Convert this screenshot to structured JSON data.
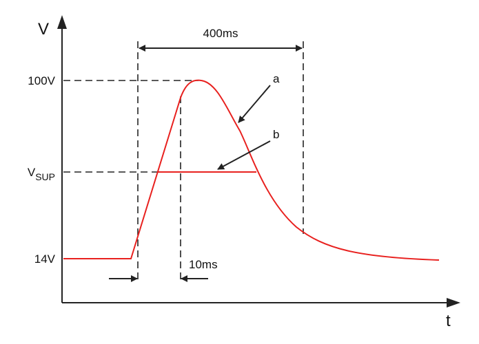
{
  "axes": {
    "y_label": "V",
    "x_label": "t"
  },
  "levels": {
    "peak": "100V",
    "supply": {
      "main": "V",
      "subscript": "SUP"
    },
    "base": "14V"
  },
  "durations": {
    "pulse": "400ms",
    "rise": "10ms"
  },
  "curves": {
    "a": "a",
    "b": "b"
  }
}
